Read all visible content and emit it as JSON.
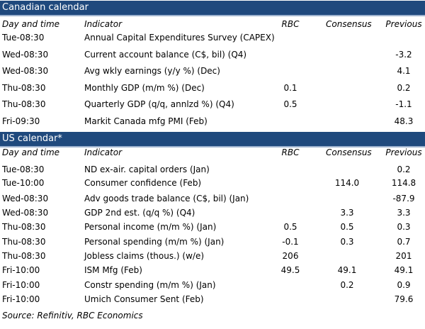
{
  "colors": {
    "header_bar": "#1f497d"
  },
  "columns": [
    "Day and time",
    "Indicator",
    "RBC",
    "Consensus",
    "Previous"
  ],
  "canadian": {
    "title": "Canadian calendar",
    "rows": [
      [
        "Tue-08:30",
        "Annual Capital Expenditures Survey (CAPEX)",
        "",
        "",
        ""
      ],
      [
        "Wed-08:30",
        "Current account balance (C$, bil) (Q4)",
        "",
        "",
        "-3.2"
      ],
      [
        "Wed-08:30",
        "Avg wkly earnings (y/y %) (Dec)",
        "",
        "",
        "4.1"
      ],
      [
        "Thu-08:30",
        "Monthly GDP (m/m %) (Dec)",
        "0.1",
        "",
        "0.2"
      ],
      [
        "Thu-08:30",
        "Quarterly GDP (q/q, annlzd %) (Q4)",
        "0.5",
        "",
        "-1.1"
      ],
      [
        "Fri-09:30",
        "Markit Canada mfg PMI (Feb)",
        "",
        "",
        "48.3"
      ]
    ]
  },
  "us": {
    "title": "US calendar*",
    "rows": [
      [
        "Tue-08:30",
        "ND ex-air. capital orders (Jan)",
        "",
        "",
        "0.2"
      ],
      [
        "Tue-10:00",
        "Consumer confidence (Feb)",
        "",
        "114.0",
        "114.8"
      ],
      [
        "Wed-08:30",
        "Adv goods trade balance (C$, bil) (Jan)",
        "",
        "",
        "-87.9"
      ],
      [
        "Wed-08:30",
        "GDP 2nd est. (q/q %) (Q4)",
        "",
        "3.3",
        "3.3"
      ],
      [
        "Thu-08:30",
        "Personal income (m/m %) (Jan)",
        "0.5",
        "0.5",
        "0.3"
      ],
      [
        "Thu-08:30",
        "Personal spending (m/m %) (Jan)",
        "-0.1",
        "0.3",
        "0.7"
      ],
      [
        "Thu-08:30",
        "Jobless claims (thous.) (w/e)",
        "206",
        "",
        "201"
      ],
      [
        "Fri-10:00",
        "ISM Mfg (Feb)",
        "49.5",
        "49.1",
        "49.1"
      ],
      [
        "Fri-10:00",
        "Constr spending (m/m %) (Jan)",
        "",
        "0.2",
        "0.9"
      ],
      [
        "Fri-10:00",
        "Umich Consumer Sent (Feb)",
        "",
        "",
        "79.6"
      ]
    ]
  },
  "source": "Source: Refinitiv,  RBC Economics"
}
